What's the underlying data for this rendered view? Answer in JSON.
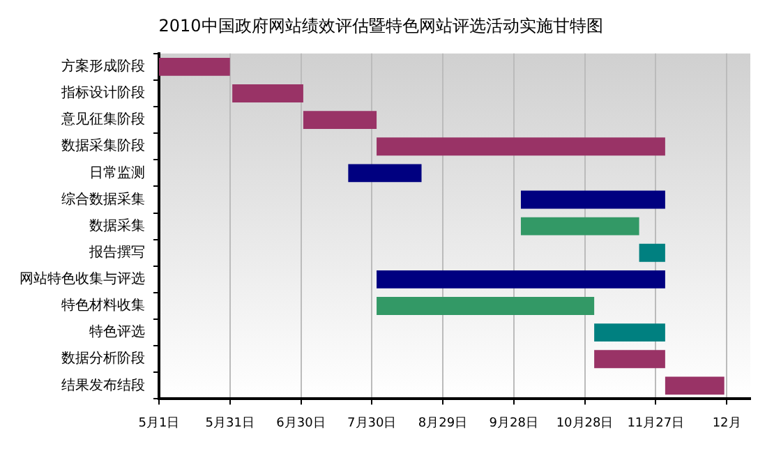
{
  "chart_data": {
    "type": "bar",
    "orientation": "horizontal",
    "title": "2010中国政府网站绩效评估暨特色网站评选活动实施甘特图",
    "categories": [
      "方案形成阶段",
      "指标设计阶段",
      "意见征集阶段",
      "数据采集阶段",
      "日常监测",
      "综合数据采集",
      "数据采集",
      "报告撰写",
      "网站特色收集与评选",
      "特色材料收集",
      "特色评选",
      "数据分析阶段",
      "结果发布结段"
    ],
    "base": [
      14730,
      14761,
      14791,
      14822,
      14810,
      14883,
      14883,
      14933,
      14822,
      14822,
      14914,
      14914,
      14944
    ],
    "values": [
      30,
      30,
      31,
      122,
      31,
      61,
      50,
      11,
      122,
      92,
      30,
      30,
      25
    ],
    "colors": [
      "#993366",
      "#993366",
      "#993366",
      "#993366",
      "#000080",
      "#000080",
      "#339966",
      "#008080",
      "#000080",
      "#339966",
      "#008080",
      "#993366",
      "#993366"
    ],
    "xlim": [
      "2010-05-01",
      "2011-01-06"
    ],
    "xticks": [
      {
        "value": "2010-05-01",
        "label": "5月1日"
      },
      {
        "value": "2010-05-31",
        "label": "5月31日"
      },
      {
        "value": "2010-06-30",
        "label": "6月30日"
      },
      {
        "value": "2010-07-30",
        "label": "7月30日"
      },
      {
        "value": "2010-08-29",
        "label": "8月29日"
      },
      {
        "value": "2010-09-28",
        "label": "9月28日"
      },
      {
        "value": "2010-10-28",
        "label": "10月28日"
      },
      {
        "value": "2010-11-27",
        "label": "11月27日"
      },
      {
        "value": "2010-12-27",
        "label": "12月"
      }
    ],
    "grid": "x",
    "legend": false
  }
}
